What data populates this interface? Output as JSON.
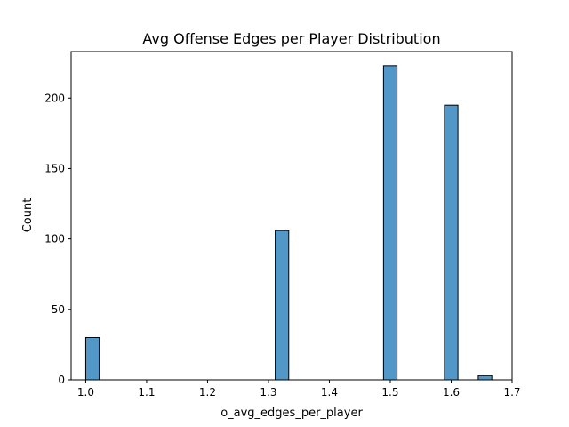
{
  "chart_data": {
    "type": "bar",
    "title": "Avg Offense Edges per Player Distribution",
    "xlabel": "o_avg_edges_per_player",
    "ylabel": "Count",
    "xlim": [
      0.976,
      1.7
    ],
    "ylim": [
      0,
      233
    ],
    "xticks": [
      "1.0",
      "1.1",
      "1.2",
      "1.3",
      "1.4",
      "1.5",
      "1.6",
      "1.7"
    ],
    "xtick_values": [
      1.0,
      1.1,
      1.2,
      1.3,
      1.4,
      1.5,
      1.6,
      1.7
    ],
    "yticks": [
      "0",
      "50",
      "100",
      "150",
      "200"
    ],
    "ytick_values": [
      0,
      50,
      100,
      150,
      200
    ],
    "bars": [
      {
        "x0": 1.0,
        "x1": 1.0222,
        "count": 30
      },
      {
        "x0": 1.3111,
        "x1": 1.3333,
        "count": 106
      },
      {
        "x0": 1.4889,
        "x1": 1.5111,
        "count": 223
      },
      {
        "x0": 1.5889,
        "x1": 1.6111,
        "count": 195
      },
      {
        "x0": 1.6444,
        "x1": 1.6667,
        "count": 3
      }
    ],
    "bar_color": "#5197c8",
    "grid": false
  }
}
